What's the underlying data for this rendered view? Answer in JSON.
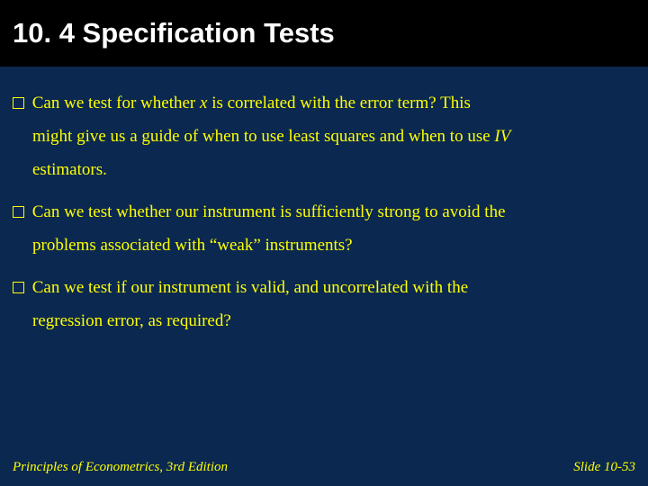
{
  "colors": {
    "background": "#0a2850",
    "title_bar_bg": "#000000",
    "title_text": "#ffffff",
    "body_text": "#ffff00",
    "bullet_border": "#ffff00"
  },
  "typography": {
    "title_font": "Arial",
    "title_size_pt": 31,
    "title_weight": "bold",
    "body_font": "Times New Roman",
    "body_size_pt": 19,
    "footer_size_pt": 15,
    "footer_style": "italic"
  },
  "title": "10. 4  Specification Tests",
  "bullets": [
    {
      "line1_pre": "Can we test for whether ",
      "line1_italic": "x",
      "line1_post": " is correlated with the error term? This",
      "line2_pre": "might give us a guide of when to use least squares and when to use ",
      "line2_italic": "IV",
      "line2_post": "",
      "line3": "estimators."
    },
    {
      "line1_pre": "Can we test whether our instrument is sufficiently strong to avoid the",
      "line1_italic": "",
      "line1_post": "",
      "line2_pre": "problems associated with “weak” instruments?",
      "line2_italic": "",
      "line2_post": "",
      "line3": ""
    },
    {
      "line1_pre": "Can we test if our instrument is valid, and uncorrelated with the",
      "line1_italic": "",
      "line1_post": "",
      "line2_pre": "regression error, as required?",
      "line2_italic": "",
      "line2_post": "",
      "line3": ""
    }
  ],
  "footer": {
    "left": "Principles of Econometrics, 3rd Edition",
    "right": "Slide 10-53"
  }
}
